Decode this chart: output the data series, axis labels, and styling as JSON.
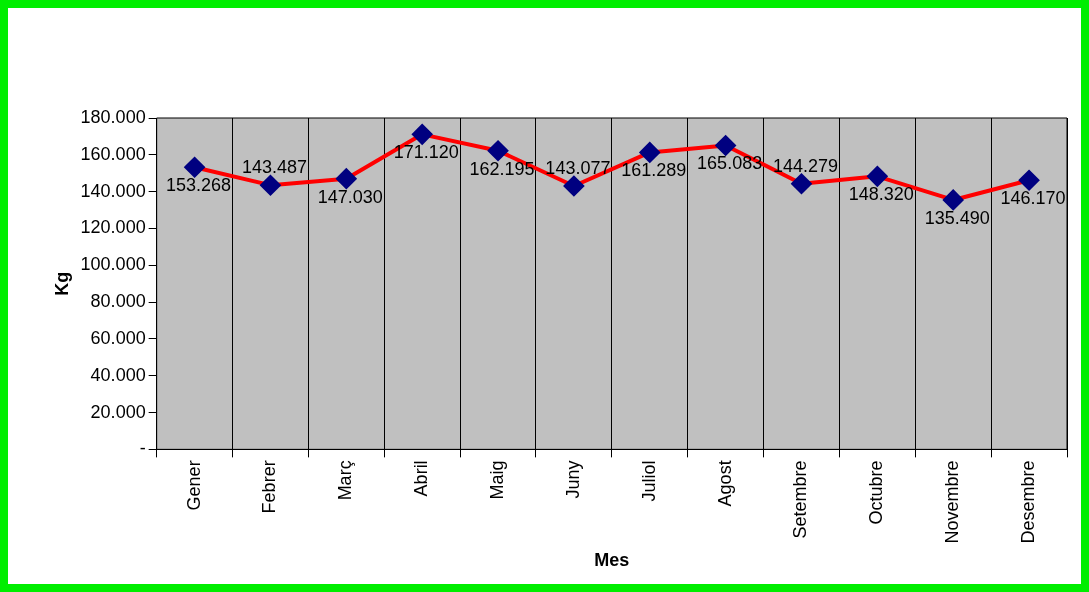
{
  "chart_data": {
    "type": "line",
    "xlabel": "Mes",
    "ylabel": "Kg",
    "categories": [
      "Gener",
      "Febrer",
      "Març",
      "Abril",
      "Maig",
      "Juny",
      "Juliol",
      "Agost",
      "Setembre",
      "Octubre",
      "Novembre",
      "Desembre"
    ],
    "series": [
      {
        "color": "#ff0000",
        "values": [
          153268,
          143487,
          147030,
          171120,
          162195,
          143077,
          161289,
          165083,
          144279,
          148320,
          135490,
          146170
        ],
        "value_labels": [
          "153.268",
          "143.487",
          "147.030",
          "171.120",
          "162.195",
          "143.077",
          "161.289",
          "165.083",
          "144.279",
          "148.320",
          "135.490",
          "146.170"
        ]
      }
    ],
    "ylim": [
      0,
      180000
    ],
    "yticks": [
      {
        "value": 0,
        "label": "-"
      },
      {
        "value": 20000,
        "label": "20.000"
      },
      {
        "value": 40000,
        "label": "40.000"
      },
      {
        "value": 60000,
        "label": "60.000"
      },
      {
        "value": 80000,
        "label": "80.000"
      },
      {
        "value": 100000,
        "label": "100.000"
      },
      {
        "value": 120000,
        "label": "120.000"
      },
      {
        "value": 140000,
        "label": "140.000"
      },
      {
        "value": 160000,
        "label": "160.000"
      },
      {
        "value": 180000,
        "label": "180.000"
      }
    ],
    "grid": "x",
    "legend": false,
    "marker": "diamond",
    "line_style": "solid"
  }
}
